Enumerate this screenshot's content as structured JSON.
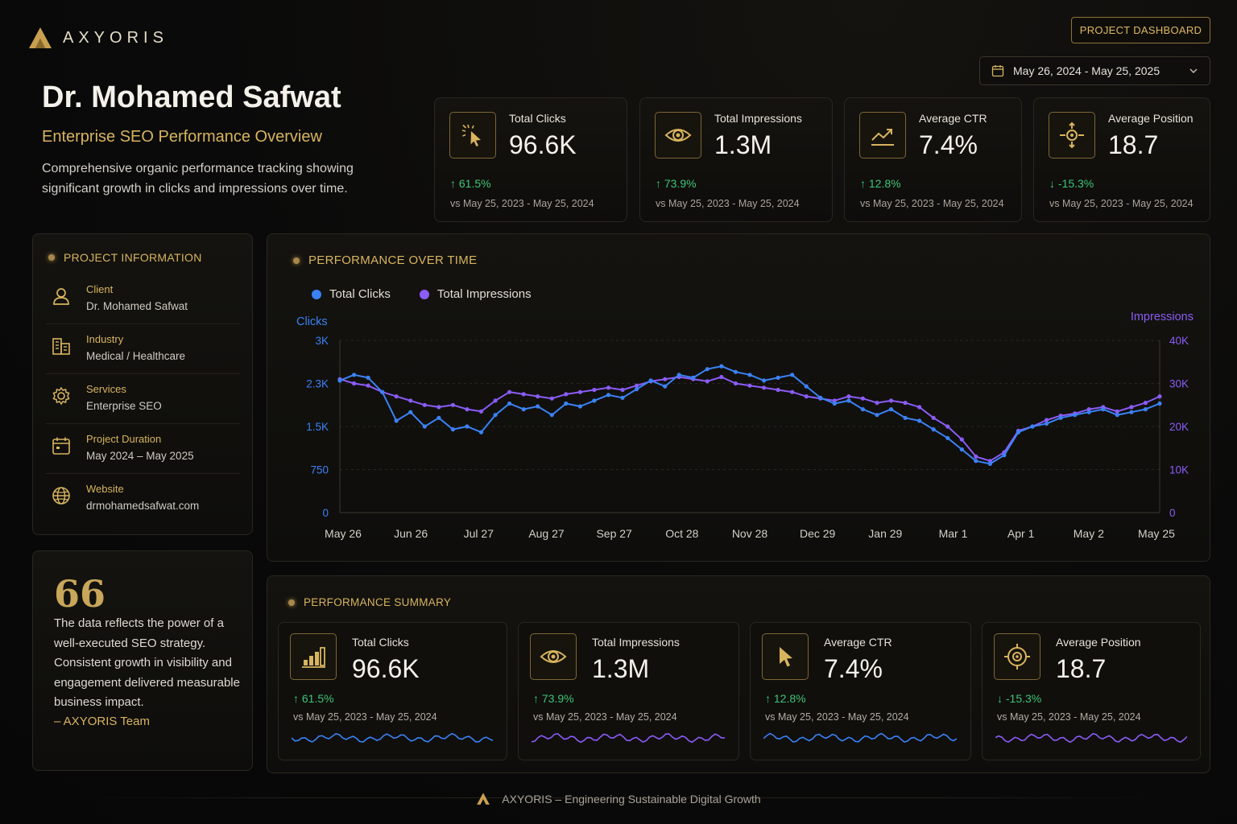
{
  "brand": {
    "name": "AXYORIS",
    "accent": "#d8b45e"
  },
  "header": {
    "project_button": "PROJECT DASHBOARD",
    "date_range": "May 26, 2024 - May 25, 2025"
  },
  "hero": {
    "name": "Dr. Mohamed Safwat",
    "subtitle": "Enterprise SEO Performance Overview",
    "description": "Comprehensive organic performance tracking showing significant growth in clicks and impressions over time."
  },
  "kpis": [
    {
      "icon": "cursor-click-icon",
      "label": "Total Clicks",
      "value": "96.6K",
      "change": "↑ 61.5%",
      "period": "vs May 25, 2023 - May 25, 2024"
    },
    {
      "icon": "eye-icon",
      "label": "Total Impressions",
      "value": "1.3M",
      "change": "↑ 73.9%",
      "period": "vs May 25, 2023 - May 25, 2024"
    },
    {
      "icon": "trend-chart-icon",
      "label": "Average CTR",
      "value": "7.4%",
      "change": "↑ 12.8%",
      "period": "vs May 25, 2023 - May 25, 2024"
    },
    {
      "icon": "position-target-icon",
      "label": "Average Position",
      "value": "18.7",
      "change": "↓ -15.3%",
      "period": "vs May 25, 2023 - May 25, 2024"
    }
  ],
  "project_info": {
    "title": "PROJECT INFORMATION",
    "rows": [
      {
        "icon": "user-icon",
        "label": "Client",
        "value": "Dr. Mohamed Safwat"
      },
      {
        "icon": "building-icon",
        "label": "Industry",
        "value": "Medical / Healthcare"
      },
      {
        "icon": "gear-icon",
        "label": "Services",
        "value": "Enterprise SEO"
      },
      {
        "icon": "calendar-icon",
        "label": "Project Duration",
        "value": "May 2024 – May 2025"
      },
      {
        "icon": "globe-icon",
        "label": "Website",
        "value": "drmohamedsafwat.com"
      }
    ]
  },
  "quote": {
    "mark": "66",
    "text": "The data reflects the power of a well-executed SEO strategy. Consistent growth in visibility and engagement delivered measurable business impact.",
    "author": "– AXYORIS Team"
  },
  "chart_section_title": "PERFORMANCE OVER TIME",
  "chart_data": {
    "type": "line",
    "title": "PERFORMANCE OVER TIME",
    "ylabel_left": "Clicks",
    "ylabel_right": "Impressions",
    "y_left_ticks": [
      "3K",
      "2.3K",
      "1.5K",
      "750",
      "0"
    ],
    "y_right_ticks": [
      "40K",
      "30K",
      "20K",
      "10K",
      "0"
    ],
    "ylim_left": [
      0,
      3000
    ],
    "ylim_right": [
      0,
      40000
    ],
    "x_ticks": [
      "May 26",
      "Jun 26",
      "Jul 27",
      "Aug 27",
      "Sep 27",
      "Oct 28",
      "Nov 28",
      "Dec 29",
      "Jan 29",
      "Mar 1",
      "Apr 1",
      "May 2",
      "May 25"
    ],
    "legend_position": "top-left",
    "series": [
      {
        "name": "Total Clicks",
        "axis": "left",
        "color": "#3b82f6",
        "values": [
          2300,
          2400,
          2350,
          2100,
          1600,
          1750,
          1500,
          1650,
          1450,
          1500,
          1400,
          1700,
          1900,
          1800,
          1850,
          1700,
          1900,
          1850,
          1950,
          2050,
          2000,
          2150,
          2300,
          2200,
          2400,
          2350,
          2500,
          2550,
          2450,
          2400,
          2300,
          2350,
          2400,
          2200,
          2000,
          1900,
          1950,
          1800,
          1700,
          1800,
          1650,
          1600,
          1450,
          1300,
          1100,
          900,
          850,
          1000,
          1400,
          1500,
          1550,
          1650,
          1700,
          1750,
          1800,
          1700,
          1750,
          1800,
          1900
        ]
      },
      {
        "name": "Total Impressions",
        "axis": "right",
        "color": "#8b5cf6",
        "values": [
          31000,
          30000,
          29500,
          28000,
          27000,
          26000,
          25000,
          24500,
          25000,
          24000,
          23500,
          26000,
          28000,
          27500,
          27000,
          26500,
          27500,
          28000,
          28500,
          29000,
          28500,
          29500,
          30500,
          31000,
          31500,
          31000,
          30500,
          31500,
          30000,
          29500,
          29000,
          28500,
          28000,
          27000,
          26500,
          26000,
          27000,
          26500,
          25500,
          26000,
          25500,
          24500,
          22000,
          20000,
          17000,
          13000,
          12000,
          14000,
          19000,
          20000,
          21500,
          22500,
          23000,
          24000,
          24500,
          23500,
          24500,
          25500,
          27000
        ]
      }
    ]
  },
  "summary": {
    "title": "PERFORMANCE SUMMARY",
    "cards": [
      {
        "icon": "bar-chart-icon",
        "label": "Total Clicks",
        "value": "96.6K",
        "change": "↑ 61.5%",
        "period": "vs May 25, 2023 - May 25, 2024",
        "spark_color": "#3b82f6"
      },
      {
        "icon": "eye-icon",
        "label": "Total Impressions",
        "value": "1.3M",
        "change": "↑ 73.9%",
        "period": "vs May 25, 2023 - May 25, 2024",
        "spark_color": "#8b5cf6"
      },
      {
        "icon": "cursor-icon",
        "label": "Average CTR",
        "value": "7.4%",
        "change": "↑ 12.8%",
        "period": "vs May 25, 2023 - May 25, 2024",
        "spark_color": "#3b82f6"
      },
      {
        "icon": "target-icon",
        "label": "Average Position",
        "value": "18.7",
        "change": "↓ -15.3%",
        "period": "vs May 25, 2023 - May 25, 2024",
        "spark_color": "#8b5cf6"
      }
    ]
  },
  "footer": {
    "text": "AXYORIS – Engineering Sustainable Digital Growth"
  },
  "colors": {
    "positive": "#3fc476",
    "clicks": "#3b82f6",
    "impressions": "#8b5cf6",
    "gold": "#d8b45e"
  }
}
